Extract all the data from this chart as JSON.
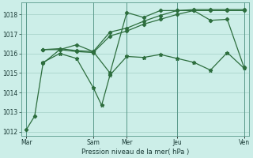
{
  "bg_color": "#cceee8",
  "grid_color": "#aad4cc",
  "line_color": "#2d6e3e",
  "ylim": [
    1011.8,
    1018.6
  ],
  "yticks": [
    1012,
    1013,
    1014,
    1015,
    1016,
    1017,
    1018
  ],
  "xlabel": "Pression niveau de la mer( hPa )",
  "day_labels": [
    "Mar",
    "",
    "Sam",
    "Mer",
    "",
    "Jeu",
    "",
    "Ven"
  ],
  "day_positions": [
    0,
    2,
    4,
    6,
    8,
    9,
    11,
    13
  ],
  "vline_positions": [
    0,
    4,
    6,
    9,
    13
  ],
  "series1": {
    "x": [
      0,
      0.5,
      1,
      2,
      3,
      4,
      5,
      6,
      7,
      8,
      9,
      10,
      11,
      12,
      13
    ],
    "y": [
      1012.1,
      1012.8,
      1015.5,
      1016.2,
      1016.45,
      1016.1,
      1015.0,
      1018.1,
      1017.85,
      1018.2,
      1018.2,
      1018.2,
      1017.7,
      1017.75,
      1015.3
    ]
  },
  "series2": {
    "x": [
      1,
      2,
      3,
      4,
      5,
      6,
      7,
      8,
      9,
      10,
      11,
      12,
      13
    ],
    "y": [
      1016.2,
      1016.2,
      1016.1,
      1016.05,
      1016.9,
      1017.15,
      1017.5,
      1017.75,
      1018.0,
      1018.2,
      1018.2,
      1018.2,
      1018.2
    ]
  },
  "series3": {
    "x": [
      1,
      2,
      3,
      4,
      5,
      6,
      7,
      8,
      9,
      10,
      11,
      12,
      13
    ],
    "y": [
      1016.2,
      1016.25,
      1016.15,
      1016.1,
      1017.1,
      1017.3,
      1017.65,
      1017.95,
      1018.2,
      1018.25,
      1018.25,
      1018.25,
      1018.25
    ]
  },
  "series4": {
    "x": [
      1,
      2,
      3,
      4,
      4.5,
      5,
      6,
      7,
      8,
      9,
      10,
      11,
      12,
      13
    ],
    "y": [
      1015.55,
      1016.0,
      1015.75,
      1014.25,
      1013.35,
      1014.9,
      1015.85,
      1015.8,
      1015.95,
      1015.75,
      1015.55,
      1015.15,
      1016.05,
      1015.25
    ]
  }
}
